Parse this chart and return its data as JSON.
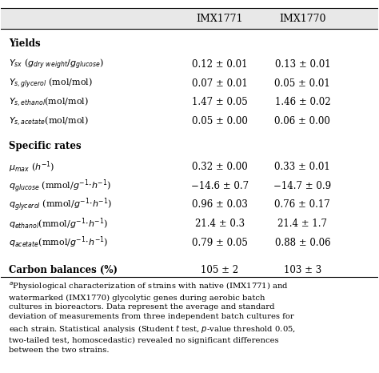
{
  "header": [
    "",
    "IMX1771",
    "IMX1770"
  ],
  "sections": [
    {
      "title": "Yields",
      "rows": [
        {
          "label": "$Y_{sx}$ ($g_{dry\\ weight}/g_{glucose}$)",
          "v1": "0.12 ± 0.01",
          "v2": "0.13 ± 0.01"
        },
        {
          "label": "$Y_{s,glycerol}$ (mol/mol)",
          "v1": "0.07 ± 0.01",
          "v2": "0.05 ± 0.01"
        },
        {
          "label": "$Y_{s,ethanol}$(mol/mol)",
          "v1": "1.47 ± 0.05",
          "v2": "1.46 ± 0.02"
        },
        {
          "label": "$Y_{s,acetate}$(mol/mol)",
          "v1": "0.05 ± 0.00",
          "v2": "0.06 ± 0.00"
        }
      ]
    },
    {
      "title": "Specific rates",
      "rows": [
        {
          "label": "$\\mu_{max}$ ($h^{-1}$)",
          "v1": "0.32 ± 0.00",
          "v2": "0.33 ± 0.01"
        },
        {
          "label": "$q_{glucose}$ (mmol/$g^{-1}$·$h^{-1}$)",
          "v1": "−14.6 ± 0.7",
          "v2": "−14.7 ± 0.9"
        },
        {
          "label": "$q_{glycerol}$ (mmol/$g^{-1}$·$h^{-1}$)",
          "v1": "0.96 ± 0.03",
          "v2": "0.76 ± 0.17"
        },
        {
          "label": "$q_{ethanol}$(mmol/$g^{-1}$·$h^{-1}$)",
          "v1": "21.4 ± 0.3",
          "v2": "21.4 ± 1.7"
        },
        {
          "label": "$q_{acetate}$(mmol/$g^{-1}$·$h^{-1}$)",
          "v1": "0.79 ± 0.05",
          "v2": "0.88 ± 0.06"
        }
      ]
    },
    {
      "title": "Carbon balances (%)",
      "rows": [
        {
          "label": "",
          "v1": "105 ± 2",
          "v2": "103 ± 3"
        }
      ]
    }
  ],
  "footnote": "$^{a}$Physiological characterization of strains with native (IMX1771) and watermarked (IMX1770) glycolytic genes during aerobic batch cultures in bioreactors. Data represent the average and standard deviation of measurements from three independent batch cultures for each strain. Statistical analysis (Student $t$ test, $p$-value threshold 0.05, two-tailed test, homoscedastic) revealed no significant differences between the two strains.",
  "bg_color": "#f0f0f0",
  "header_bg": "#d0d0d0",
  "text_color": "#000000"
}
